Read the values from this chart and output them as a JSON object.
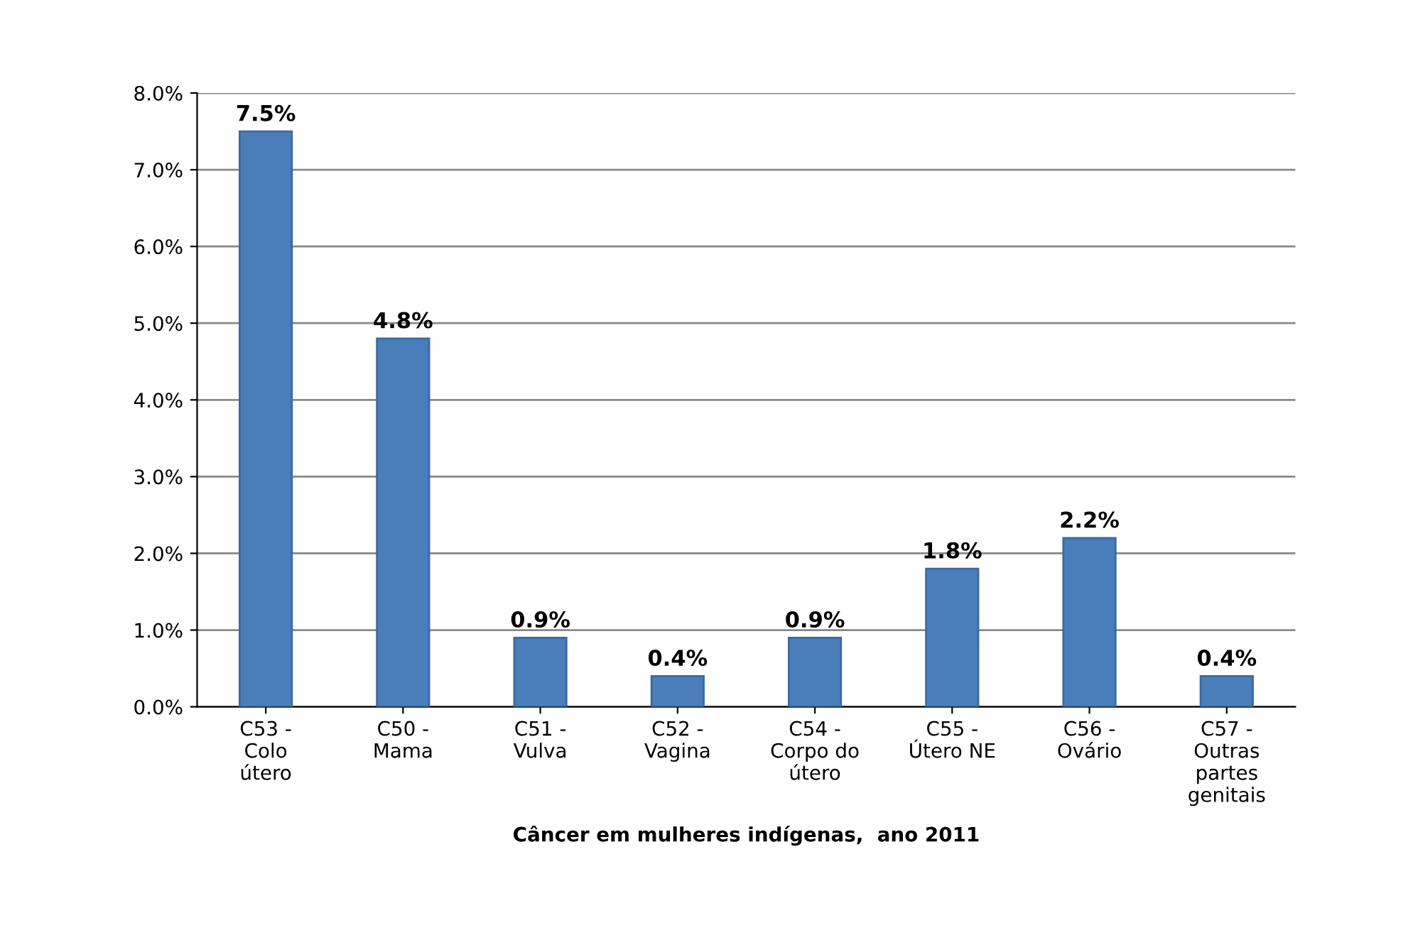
{
  "chart_data": {
    "type": "bar",
    "xlabel": "Câncer em mulheres indígenas,  ano 2011",
    "categories": [
      "C53 -\nColo\nútero",
      "C50 -\nMama",
      "C51 -\nVulva",
      "C52 -\nVagina",
      "C54 -\nCorpo do\nútero",
      "C55 -\nÚtero NE",
      "C56 -\nOvário",
      "C57 -\nOutras\npartes\ngenitais"
    ],
    "values": [
      7.5,
      4.8,
      0.9,
      0.4,
      0.9,
      1.8,
      2.2,
      0.4
    ],
    "value_labels": [
      "7.5%",
      "4.8%",
      "0.9%",
      "0.4%",
      "0.9%",
      "1.8%",
      "2.2%",
      "0.4%"
    ],
    "color": "#4a7ebb",
    "ylim": [
      0,
      8
    ],
    "yticks": [
      {
        "value": 0,
        "label": "0.0%"
      },
      {
        "value": 1,
        "label": "1.0%"
      },
      {
        "value": 2,
        "label": "2.0%"
      },
      {
        "value": 3,
        "label": "3.0%"
      },
      {
        "value": 4,
        "label": "4.0%"
      },
      {
        "value": 5,
        "label": "5.0%"
      },
      {
        "value": 6,
        "label": "6.0%"
      },
      {
        "value": 7,
        "label": "7.0%"
      },
      {
        "value": 8,
        "label": "8.0%"
      }
    ],
    "grid": "y",
    "legend": false
  }
}
